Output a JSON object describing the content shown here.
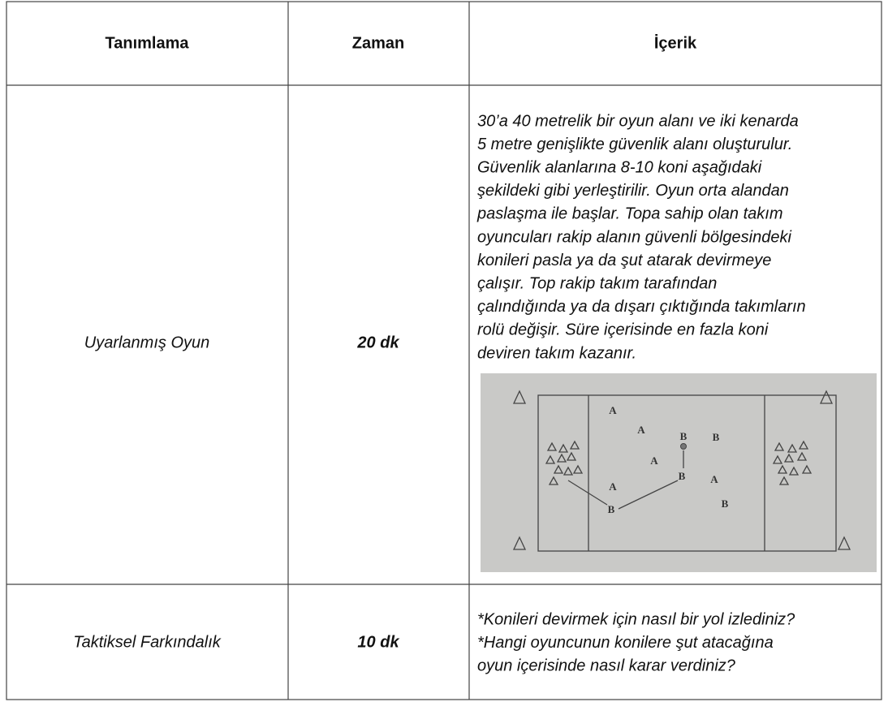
{
  "table": {
    "header": [
      "Tanımlama",
      "Zaman",
      "İçerik"
    ],
    "rows": [
      {
        "activity": "Uyarlanmış Oyun",
        "time": "20 dk",
        "content": [
          "30’a  40 metrelik bir oyun alanı ve iki kenarda",
          "5 metre genişlikte güvenlik alanı oluşturulur.",
          "Güvenlik alanlarına 8-10 koni aşağıdaki",
          "şekildeki gibi yerleştirilir. Oyun orta alandan",
          "paslaşma ile başlar. Topa sahip olan takım",
          "oyuncuları rakip alanın güvenli bölgesindeki",
          "konileri pasla ya da şut atarak devirmeye",
          "çalışır. Top rakip takım tarafından",
          "çalındığında ya da dışarı çıktığında takımların",
          "rolü değişir. Süre içerisinde en fazla koni",
          "deviren takım kazanır."
        ],
        "diagram": {
          "labels": [
            "A",
            "A",
            "B",
            "B",
            "A",
            "B",
            "A",
            "A",
            "B",
            "B"
          ]
        }
      },
      {
        "activity": "Taktiksel Farkındalık",
        "time": "10 dk",
        "content": [
          "*Konileri devirmek için nasıl bir yol izlediniz?",
          "*Hangi oyuncunun konilere şut atacağına",
          "oyun içerisinde nasıl karar verdiniz?"
        ]
      }
    ]
  }
}
